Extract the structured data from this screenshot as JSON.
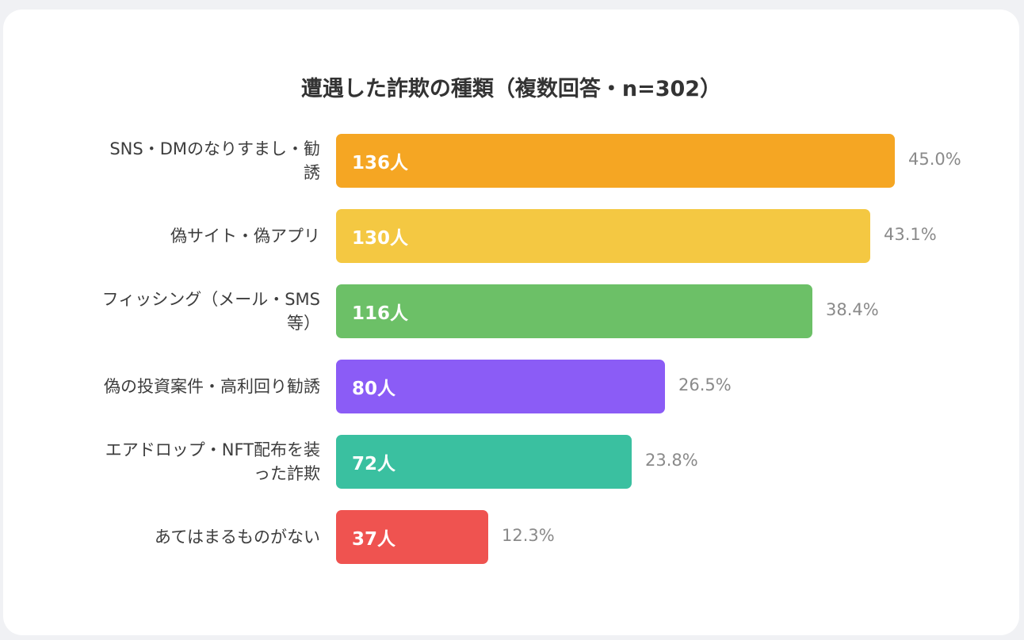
{
  "chart_data": {
    "type": "bar",
    "orientation": "horizontal",
    "title": "遭遇した詐欺の種類（複数回答・n=302）",
    "categories": [
      "SNS・DMのなりすまし・勧誘",
      "偽サイト・偽アプリ",
      "フィッシング（メール・SMS等）",
      "偽の投資案件・高利回り勧誘",
      "エアドロップ・NFT配布を装った詐欺",
      "あてはまるものがない"
    ],
    "label_lines": [
      [
        "SNS・DMのなりすまし・勧",
        "誘"
      ],
      [
        "偽サイト・偽アプリ"
      ],
      [
        "フィッシング（メール・SMS",
        "等）"
      ],
      [
        "偽の投資案件・高利回り勧誘"
      ],
      [
        "エアドロップ・NFT配布を装",
        "った詐欺"
      ],
      [
        "あてはまるものがない"
      ]
    ],
    "values": [
      136,
      130,
      116,
      80,
      72,
      37
    ],
    "value_labels": [
      "136人",
      "130人",
      "116人",
      "80人",
      "72人",
      "37人"
    ],
    "percentages": [
      "45.0%",
      "43.1%",
      "38.4%",
      "26.5%",
      "23.8%",
      "12.3%"
    ],
    "colors": [
      "#f5a623",
      "#f4c842",
      "#6cc067",
      "#8b5cf6",
      "#3ac0a0",
      "#ef5350"
    ],
    "xlim": [
      0,
      136
    ]
  }
}
